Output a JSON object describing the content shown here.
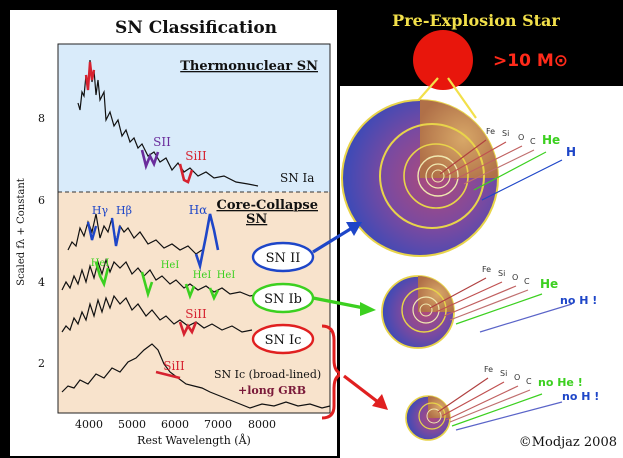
{
  "left_panel": {
    "title": "SN Classification",
    "thermo_label": "Thermonuclear SN",
    "core_label_line1": "Core-Collapse",
    "core_label_line2": "SN",
    "y_axis_label": "Scaled fλ + Constant",
    "x_axis_label": "Rest Wavelength (Å)",
    "x_ticks": [
      "4000",
      "5000",
      "6000",
      "7000",
      "8000"
    ],
    "y_ticks": [
      "2",
      "4",
      "6",
      "8"
    ],
    "spectrum_labels": {
      "ia": "SN Ia",
      "ic_bl_line1": "SN Ic (broad-lined)",
      "ic_bl_line2": "+long GRB"
    },
    "line_ids": {
      "sii": "SII",
      "siii_ia": "SiII",
      "hgamma": "Hγ",
      "hbeta": "Hβ",
      "halpha": "Hα",
      "hei_1": "HeI",
      "hei_2": "HeI",
      "hei_3": "HeI",
      "hei_4": "HeI",
      "siii_ic": "SiII",
      "siii_bl": "SiII"
    },
    "type_buttons": {
      "ii": "SN II",
      "ib": "SN Ib",
      "ic": "SN Ic"
    }
  },
  "right_panel": {
    "title": "Pre-Explosion Star",
    "mass_label": ">10 M⊙",
    "shell_labels": [
      "Fe",
      "Si",
      "O",
      "C"
    ],
    "star1": {
      "he": "He",
      "h": "H"
    },
    "star2": {
      "he": "He",
      "h": "no H !"
    },
    "star3": {
      "he": "no He !",
      "h": "no H !"
    },
    "credit": "©Modjaz 2008"
  },
  "colors": {
    "ia_region": "#d9ebfa",
    "cc_region": "#f8e3cc",
    "title_yellow": "#f2e04a",
    "mass_red": "#ff2a1a",
    "star_red": "#e8160c",
    "sii_purple": "#6a2c9c",
    "siii_red": "#d62230",
    "hydrogen_blue": "#1e46c8",
    "helium_green": "#3cd020",
    "ic_red": "#e02020",
    "shell_blue": "#5a64c8"
  }
}
